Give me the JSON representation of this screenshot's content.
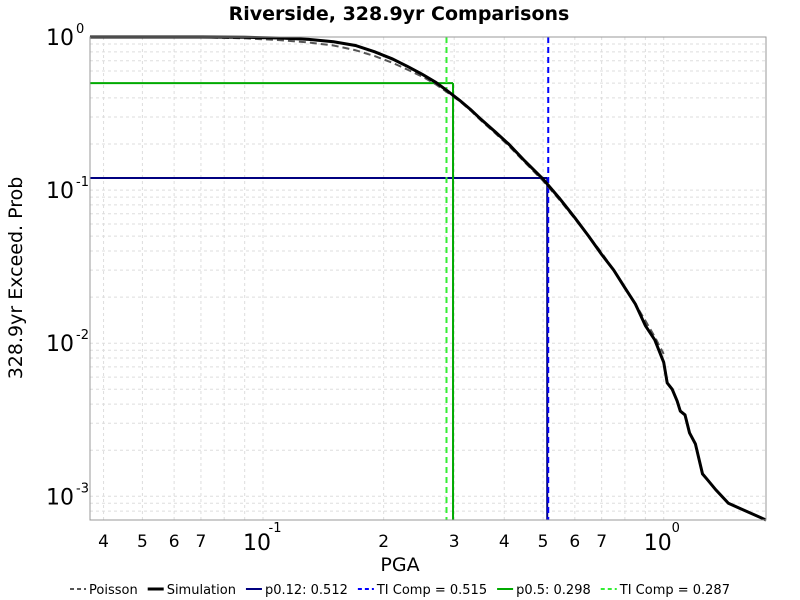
{
  "chart_data": {
    "type": "line",
    "title": "Riverside, 328.9yr Comparisons",
    "xlabel": "PGA",
    "ylabel": "328.9yr Exceed. Prob",
    "xscale": "log",
    "yscale": "log",
    "xlim": [
      0.037,
      20
    ],
    "ylim": [
      0.0007,
      1.0
    ],
    "grid": true,
    "legend_position": "bottom",
    "x_tick_labels": [
      {
        "value": 0.04,
        "label": "4"
      },
      {
        "value": 0.05,
        "label": "5"
      },
      {
        "value": 0.06,
        "label": "6"
      },
      {
        "value": 0.07,
        "label": "7"
      },
      {
        "value": 0.1,
        "base": "10",
        "exp": "-1"
      },
      {
        "value": 0.2,
        "label": "2"
      },
      {
        "value": 0.3,
        "label": "3"
      },
      {
        "value": 0.4,
        "label": "4"
      },
      {
        "value": 0.5,
        "label": "5"
      },
      {
        "value": 0.6,
        "label": "6"
      },
      {
        "value": 0.7,
        "label": "7"
      },
      {
        "value": 1.0,
        "base": "10",
        "exp": "0"
      }
    ],
    "y_tick_labels": [
      {
        "value": 1.0,
        "base": "10",
        "exp": "0"
      },
      {
        "value": 0.1,
        "base": "10",
        "exp": "-1"
      },
      {
        "value": 0.01,
        "base": "10",
        "exp": "-2"
      },
      {
        "value": 0.001,
        "base": "10",
        "exp": "-3"
      }
    ],
    "series": [
      {
        "name": "Poisson",
        "color": "#555555",
        "style": "dashed",
        "x": [
          0.037,
          0.05,
          0.07,
          0.09,
          0.11,
          0.13,
          0.15,
          0.17,
          0.19,
          0.21,
          0.23,
          0.25,
          0.27,
          0.29,
          0.31,
          0.33,
          0.35,
          0.38,
          0.41,
          0.45,
          0.5,
          0.55,
          0.6,
          0.65,
          0.7,
          0.75,
          0.8,
          0.85,
          0.9,
          0.95,
          1.0
        ],
        "y": [
          1.0,
          1.0,
          0.995,
          0.98,
          0.955,
          0.92,
          0.88,
          0.82,
          0.75,
          0.68,
          0.61,
          0.55,
          0.49,
          0.43,
          0.38,
          0.33,
          0.285,
          0.235,
          0.195,
          0.152,
          0.115,
          0.086,
          0.065,
          0.05,
          0.039,
          0.03,
          0.023,
          0.018,
          0.014,
          0.011,
          0.0085
        ]
      },
      {
        "name": "Simulation",
        "color": "#000000",
        "style": "solid",
        "x": [
          0.037,
          0.05,
          0.07,
          0.09,
          0.11,
          0.13,
          0.15,
          0.17,
          0.19,
          0.21,
          0.23,
          0.25,
          0.27,
          0.29,
          0.31,
          0.33,
          0.35,
          0.38,
          0.41,
          0.45,
          0.5,
          0.55,
          0.6,
          0.65,
          0.7,
          0.75,
          0.8,
          0.85,
          0.9,
          0.95,
          1.0,
          1.02,
          1.05,
          1.08,
          1.1,
          1.13,
          1.16,
          1.2,
          1.25,
          1.28,
          1.35,
          1.45,
          1.8
        ],
        "y": [
          1.0,
          1.0,
          1.0,
          0.995,
          0.985,
          0.965,
          0.93,
          0.88,
          0.8,
          0.72,
          0.64,
          0.57,
          0.505,
          0.44,
          0.385,
          0.335,
          0.29,
          0.24,
          0.2,
          0.155,
          0.118,
          0.088,
          0.066,
          0.05,
          0.038,
          0.03,
          0.023,
          0.018,
          0.013,
          0.0105,
          0.0075,
          0.0055,
          0.005,
          0.0042,
          0.0036,
          0.0034,
          0.0026,
          0.0022,
          0.0014,
          0.0013,
          0.0011,
          0.0009,
          0.0007
        ]
      },
      {
        "name": "p0.12: 0.512",
        "color": "#000080",
        "style": "solid",
        "guide": {
          "x": 0.512,
          "y": 0.12
        }
      },
      {
        "name": "TI Comp = 0.515",
        "color": "#0000ff",
        "style": "dashed",
        "guide": {
          "x": 0.515
        }
      },
      {
        "name": "p0.5: 0.298",
        "color": "#00aa00",
        "style": "solid",
        "guide": {
          "x": 0.298,
          "y": 0.5
        }
      },
      {
        "name": "TI Comp = 0.287",
        "color": "#33ee33",
        "style": "dashed",
        "guide": {
          "x": 0.287
        }
      }
    ]
  }
}
